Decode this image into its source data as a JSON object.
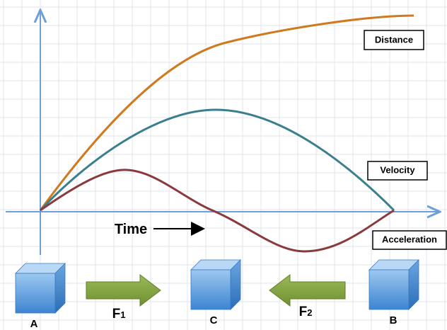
{
  "curve_labels": {
    "distance": "Distance",
    "velocity": "Velocity",
    "acceleration": "Acceleration"
  },
  "time_label": "Time",
  "blocks": [
    {
      "label": "A"
    },
    {
      "label": "C"
    },
    {
      "label": "B"
    }
  ],
  "forces": [
    {
      "letter": "F",
      "subscript": "1"
    },
    {
      "letter": "F",
      "subscript": "2"
    }
  ]
}
